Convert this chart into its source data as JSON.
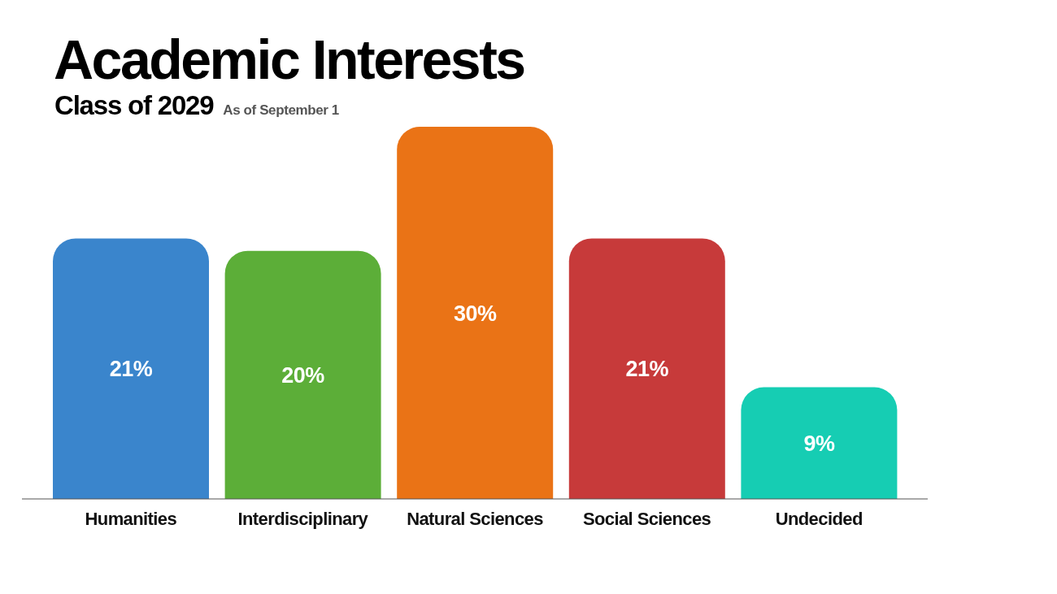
{
  "chart_data": {
    "type": "bar",
    "title": "Academic Interests",
    "subtitle": "Class of 2029",
    "annotations": [
      "As of September 1"
    ],
    "categories": [
      "Humanities",
      "Interdisciplinary",
      "Natural Sciences",
      "Social Sciences",
      "Undecided"
    ],
    "values": [
      21,
      20,
      30,
      21,
      9
    ],
    "value_labels": [
      "21%",
      "20%",
      "30%",
      "21%",
      "9%"
    ],
    "colors": [
      "#3a85cc",
      "#5cae38",
      "#ea7316",
      "#c73a3a",
      "#16cdb3"
    ]
  }
}
